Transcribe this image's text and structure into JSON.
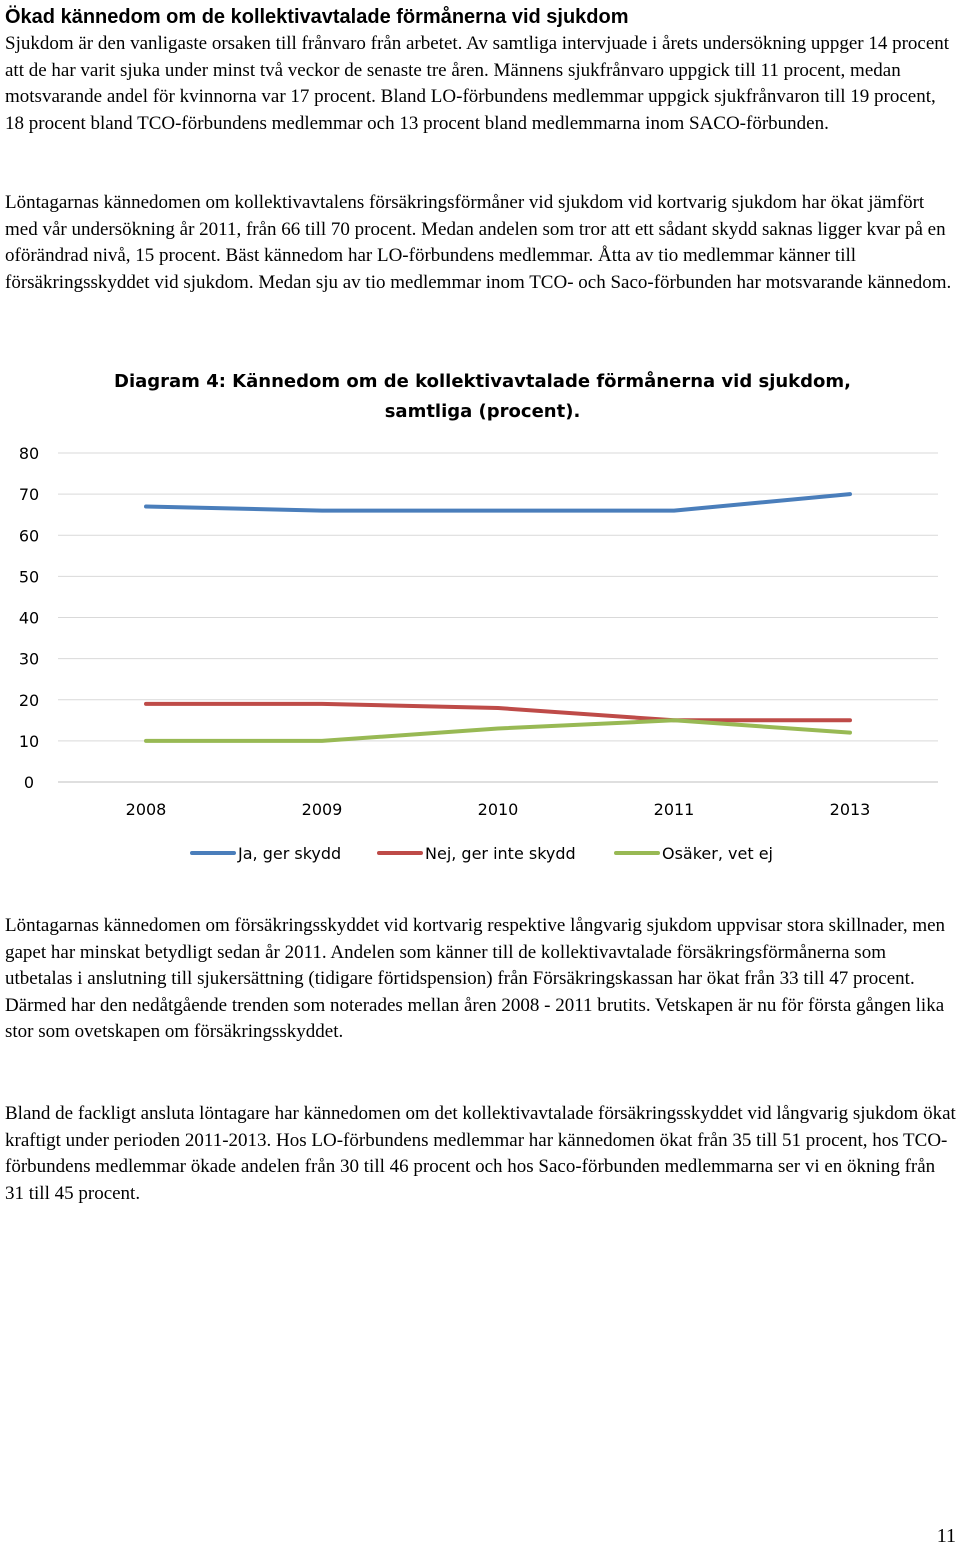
{
  "heading": "Ökad kännedom om de kollektivavtalade förmånerna vid sjukdom",
  "paragraphs": {
    "p1": "Sjukdom är den vanligaste orsaken till frånvaro från arbetet. Av samtliga intervjuade i årets undersökning uppger 14 procent att de har varit sjuka under minst två veckor de senaste tre åren. Männens sjukfrånvaro uppgick till 11 procent, medan motsvarande andel för kvinnorna var 17 procent. Bland LO-förbundens medlemmar uppgick sjukfrånvaron till 19 procent, 18 procent bland TCO-förbundens medlemmar och 13 procent bland medlemmarna inom SACO-förbunden.",
    "p2": "Löntagarnas kännedomen om kollektivavtalens försäkringsförmåner vid sjukdom vid kortvarig sjukdom har ökat jämfört med vår undersökning år 2011, från 66 till 70 procent. Medan andelen som tror att ett sådant skydd saknas ligger kvar på en oförändrad nivå, 15 procent. Bäst kännedom har LO-förbundens medlemmar. Åtta av tio medlemmar känner till försäkringsskyddet vid sjukdom. Medan sju av tio medlemmar inom TCO- och Saco-förbunden har motsvarande kännedom.",
    "p3": "Löntagarnas kännedomen om försäkringsskyddet vid kortvarig respektive långvarig sjukdom uppvisar stora skillnader, men gapet har minskat betydligt sedan år 2011. Andelen som känner till de kollektivavtalade försäkringsförmånerna som utbetalas i anslutning till sjukersättning (tidigare förtidspension) från Försäkringskassan har ökat från 33 till 47 procent.  Därmed har den nedåtgående trenden som noterades mellan åren 2008 -  2011 brutits. Vetskapen är nu för första gången lika stor som ovetskapen om försäkringsskyddet.",
    "p4": "Bland de fackligt ansluta löntagare har kännedomen om det kollektivavtalade försäkringsskyddet vid långvarig sjukdom ökat kraftigt under perioden 2011-2013. Hos LO-förbundens medlemmar har kännedomen ökat från 35 till 51 procent, hos TCO-förbundens medlemmar ökade andelen  från 30 till 46 procent och hos Saco-förbunden medlemmarna ser vi en ökning från 31 till 45 procent."
  },
  "chart_data": {
    "type": "line",
    "title": "Diagram 4: Kännedom om de kollektivavtalade förmånerna vid sjukdom, samtliga (procent).",
    "categories": [
      "2008",
      "2009",
      "2010",
      "2011",
      "2013"
    ],
    "ylim": [
      0,
      80
    ],
    "yticks": [
      "0",
      "10",
      "20",
      "30",
      "40",
      "50",
      "60",
      "70",
      "80"
    ],
    "grid": true,
    "legend_position": "bottom",
    "series": [
      {
        "name": "Ja, ger skydd",
        "color": "#4a7ebb",
        "values": [
          67,
          66,
          66,
          66,
          70
        ]
      },
      {
        "name": "Nej, ger inte skydd",
        "color": "#be4b48",
        "values": [
          19,
          19,
          18,
          15,
          15
        ]
      },
      {
        "name": "Osäker, vet ej",
        "color": "#98b954",
        "values": [
          10,
          10,
          13,
          15,
          12
        ]
      }
    ]
  },
  "page_number": "11"
}
